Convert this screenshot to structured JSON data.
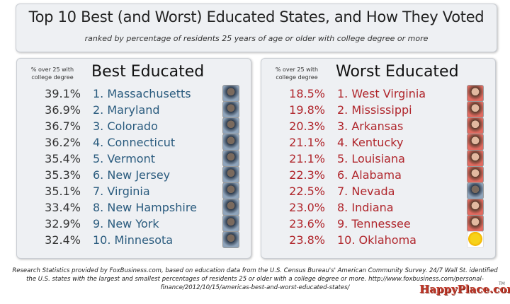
{
  "header": {
    "title": "Top 10 Best (and Worst) Educated States, and How They Voted",
    "subtitle": "ranked by percentage of residents 25 years of age or older with college degree or more"
  },
  "best": {
    "note": "% over 25 with college degree",
    "title": "Best Educated",
    "rows": [
      {
        "pct": "39.1%",
        "name": "1. Massachusetts",
        "vote": "obama"
      },
      {
        "pct": "36.9%",
        "name": "2. Maryland",
        "vote": "obama"
      },
      {
        "pct": "36.7%",
        "name": "3. Colorado",
        "vote": "obama"
      },
      {
        "pct": "36.2%",
        "name": "4. Connecticut",
        "vote": "obama"
      },
      {
        "pct": "35.4%",
        "name": "5. Vermont",
        "vote": "obama"
      },
      {
        "pct": "35.3%",
        "name": "6. New Jersey",
        "vote": "obama"
      },
      {
        "pct": "35.1%",
        "name": "7. Virginia",
        "vote": "obama"
      },
      {
        "pct": "33.4%",
        "name": "8. New Hampshire",
        "vote": "obama"
      },
      {
        "pct": "32.9%",
        "name": "9. New York",
        "vote": "obama"
      },
      {
        "pct": "32.4%",
        "name": "10. Minnesota",
        "vote": "obama"
      }
    ]
  },
  "worst": {
    "note": "% over 25 with college degree",
    "title": "Worst Educated",
    "rows": [
      {
        "pct": "18.5%",
        "name": "1. West Virginia",
        "vote": "romney"
      },
      {
        "pct": "19.8%",
        "name": "2. Mississippi",
        "vote": "romney"
      },
      {
        "pct": "20.3%",
        "name": "3. Arkansas",
        "vote": "romney"
      },
      {
        "pct": "21.1%",
        "name": "4. Kentucky",
        "vote": "romney"
      },
      {
        "pct": "21.1%",
        "name": "5. Louisiana",
        "vote": "romney"
      },
      {
        "pct": "22.3%",
        "name": "6. Alabama",
        "vote": "romney"
      },
      {
        "pct": "22.5%",
        "name": "7. Nevada",
        "vote": "obama"
      },
      {
        "pct": "23.0%",
        "name": "8. Indiana",
        "vote": "romney"
      },
      {
        "pct": "23.6%",
        "name": "9. Tennessee",
        "vote": "romney"
      },
      {
        "pct": "23.8%",
        "name": "10. Oklahoma",
        "vote": "emoji"
      }
    ]
  },
  "colors": {
    "best_name": "#2a5b7e",
    "worst": "#b0262c",
    "logo": "#c0392b"
  },
  "footer": "Research Statistics provided by FoxBusiness.com, based on education data from the U.S. Census Bureau's' American Community Survey. 24/7 Wall St. identified the U.S. states with the largest and smallest percentages of residents 25 or older with a college degree or more. http://www.foxbusiness.com/personal-finance/2012/10/15/americas-best-and-worst-educated-states/",
  "logo": "HappyPlace.com",
  "tm": "TM"
}
